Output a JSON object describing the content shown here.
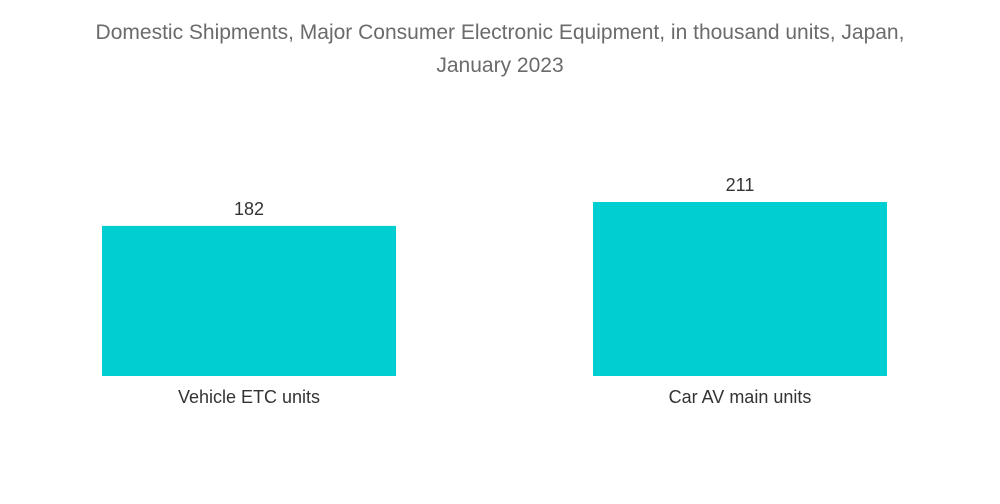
{
  "chart_data": {
    "type": "bar",
    "title_line1": "Domestic Shipments, Major Consumer Electronic Equipment, in thousand units, Japan,",
    "title_line2": "January 2023",
    "categories": [
      "Vehicle ETC units",
      "Car AV main units"
    ],
    "values": [
      182,
      211
    ],
    "xlabel": "",
    "ylabel": "",
    "ylim": [
      0,
      211
    ],
    "grid": false,
    "legend": "none",
    "bar_color": "#00CED1"
  }
}
